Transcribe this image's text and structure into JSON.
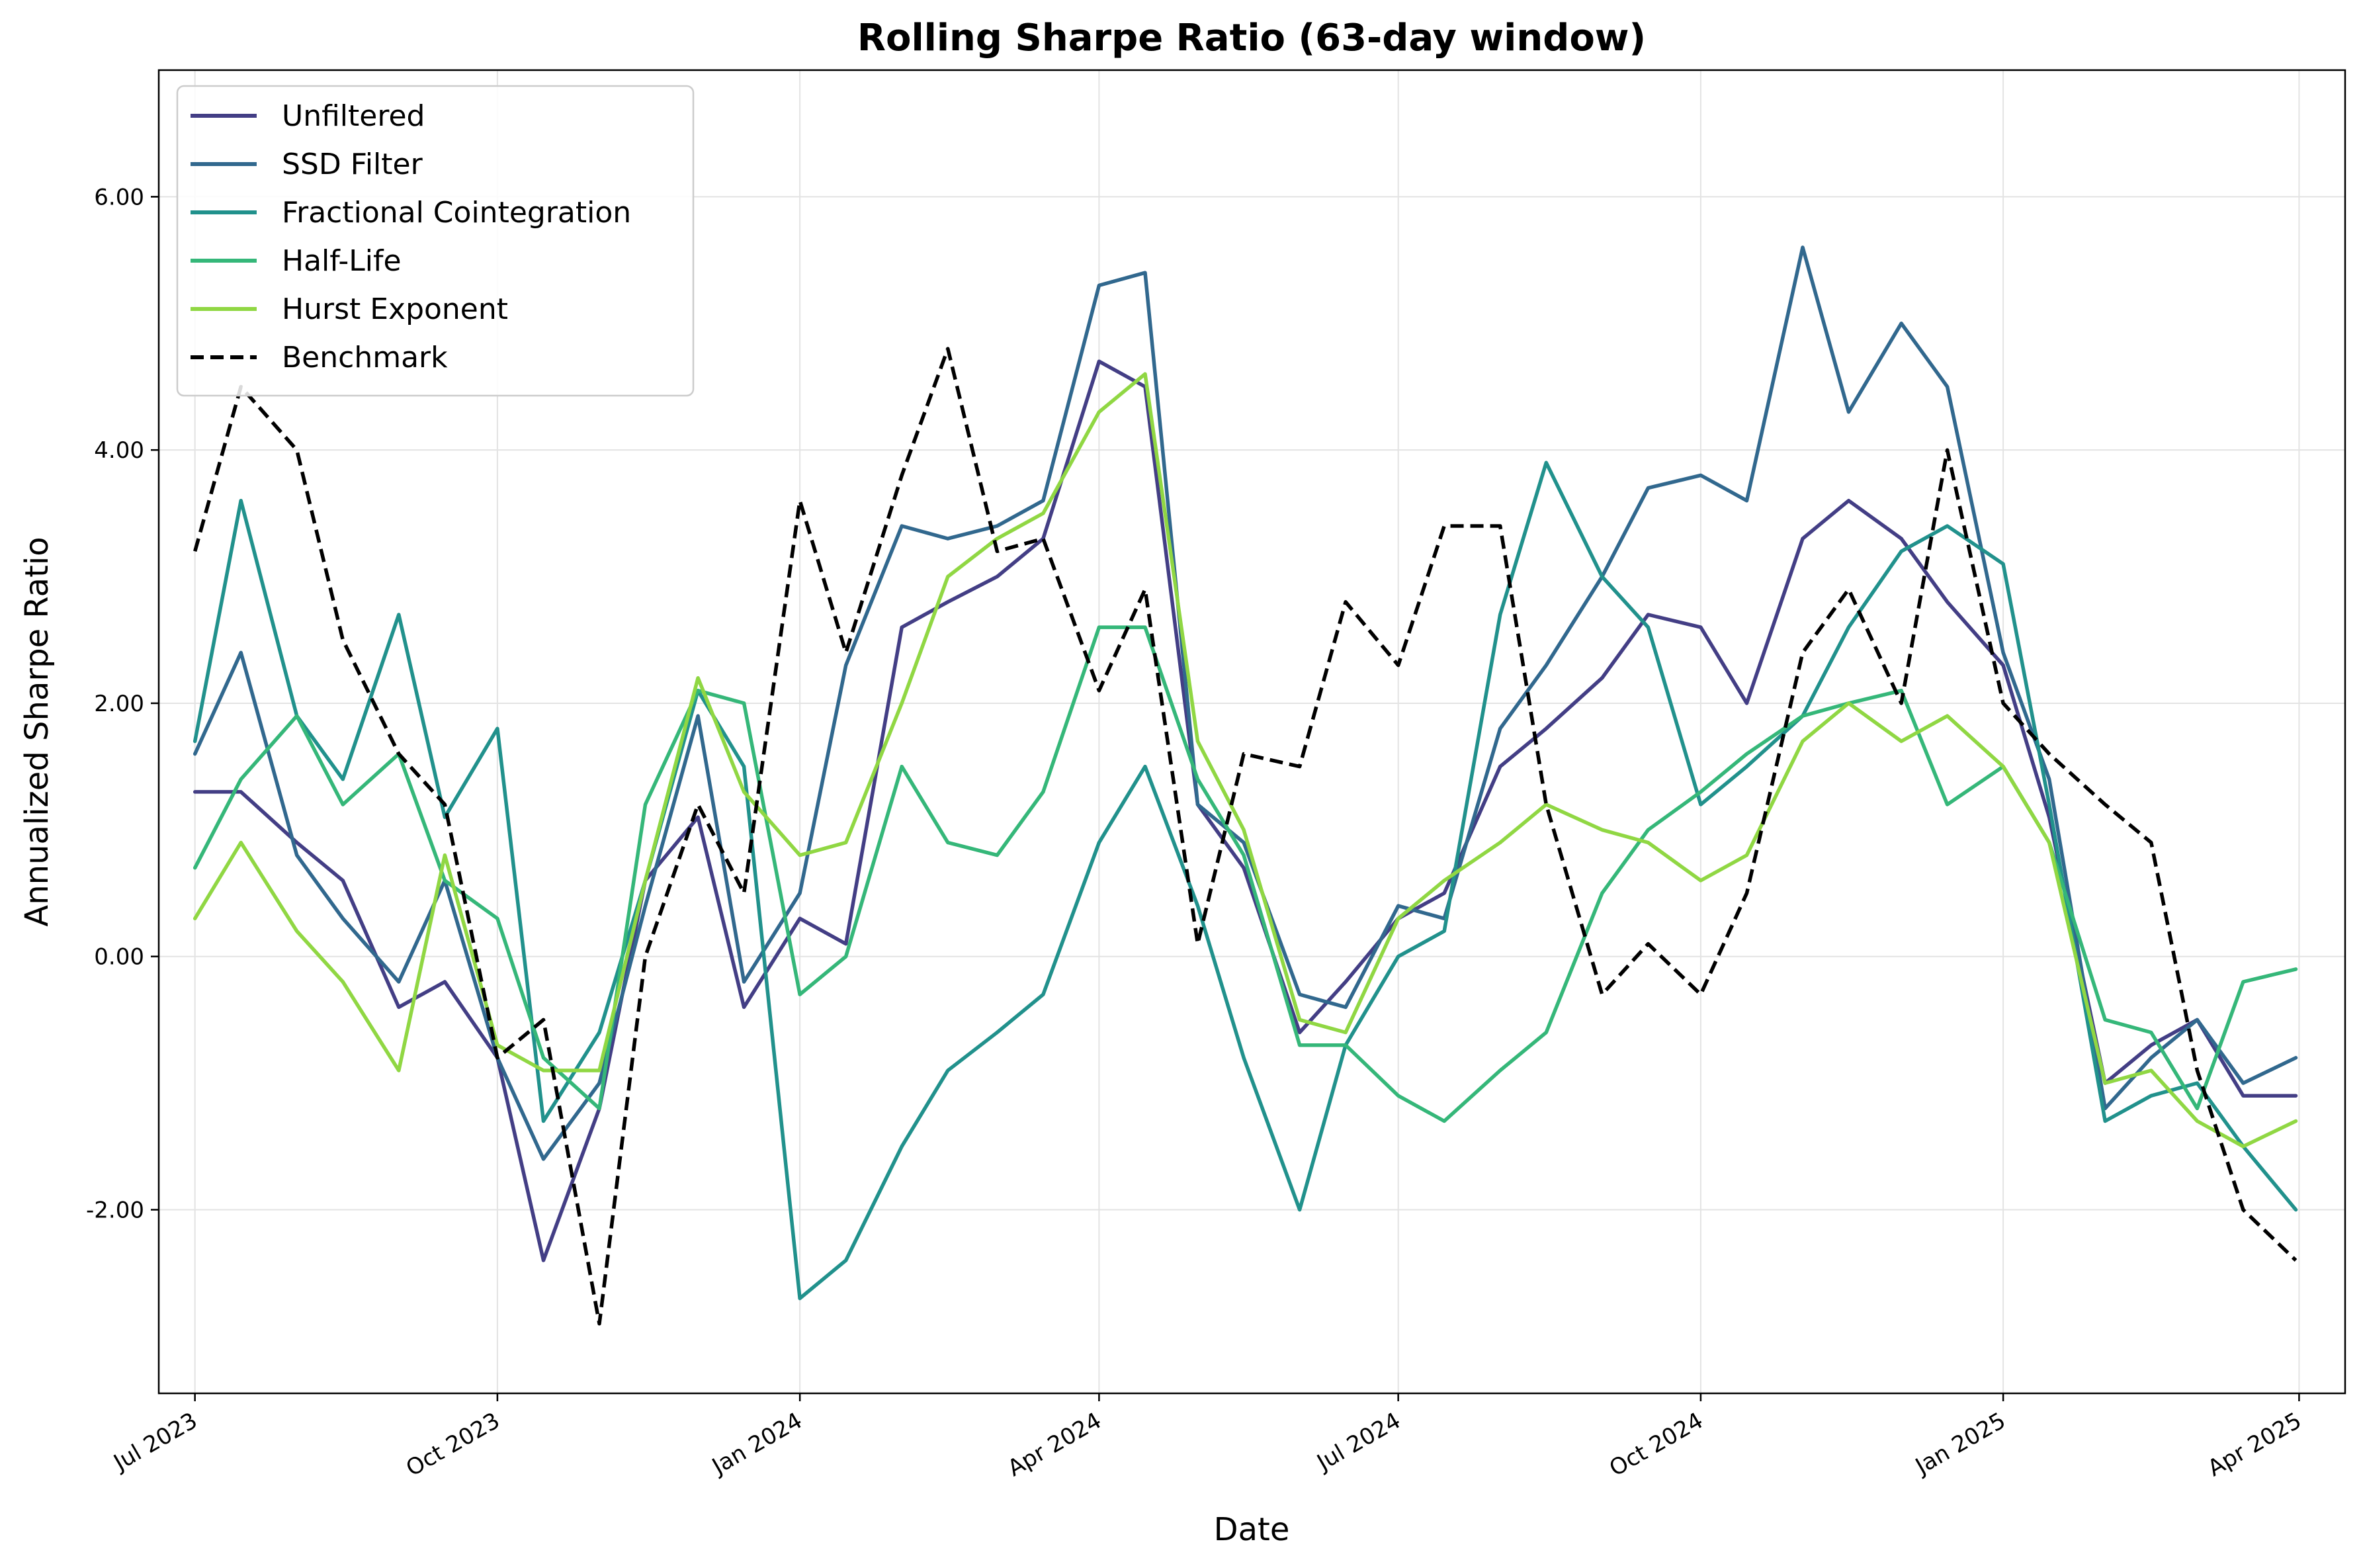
{
  "chart_data": {
    "type": "line",
    "title": "Rolling Sharpe Ratio (63-day window)",
    "xlabel": "Date",
    "ylabel": "Annualized Sharpe Ratio",
    "xlim": [
      "2023-06-20",
      "2025-04-15"
    ],
    "ylim": [
      -3.45,
      7.0
    ],
    "x_ticks": [
      {
        "date": "2023-07-01",
        "label": "Jul 2023"
      },
      {
        "date": "2023-10-01",
        "label": "Oct 2023"
      },
      {
        "date": "2024-01-01",
        "label": "Jan 2024"
      },
      {
        "date": "2024-04-01",
        "label": "Apr 2024"
      },
      {
        "date": "2024-07-01",
        "label": "Jul 2024"
      },
      {
        "date": "2024-10-01",
        "label": "Oct 2024"
      },
      {
        "date": "2025-01-01",
        "label": "Jan 2025"
      },
      {
        "date": "2025-04-01",
        "label": "Apr 2025"
      }
    ],
    "y_ticks": [
      {
        "value": -2,
        "label": "-2.00"
      },
      {
        "value": 0,
        "label": "0.00"
      },
      {
        "value": 2,
        "label": "2.00"
      },
      {
        "value": 4,
        "label": "4.00"
      },
      {
        "value": 6,
        "label": "6.00"
      }
    ],
    "grid": true,
    "legend_position": "top-left",
    "series": [
      {
        "name": "Unfiltered",
        "color": "#433e85",
        "dash": "solid",
        "x": [
          "2023-07-01",
          "2023-07-15",
          "2023-08-01",
          "2023-08-15",
          "2023-09-01",
          "2023-09-15",
          "2023-10-01",
          "2023-10-15",
          "2023-11-01",
          "2023-11-15",
          "2023-12-01",
          "2023-12-15",
          "2024-01-01",
          "2024-01-15",
          "2024-02-01",
          "2024-02-15",
          "2024-03-01",
          "2024-03-15",
          "2024-04-01",
          "2024-04-15",
          "2024-05-01",
          "2024-05-15",
          "2024-06-01",
          "2024-06-15",
          "2024-07-01",
          "2024-07-15",
          "2024-08-01",
          "2024-08-15",
          "2024-09-01",
          "2024-09-15",
          "2024-10-01",
          "2024-10-15",
          "2024-11-01",
          "2024-11-15",
          "2024-12-01",
          "2024-12-15",
          "2025-01-01",
          "2025-01-15",
          "2025-02-01",
          "2025-02-15",
          "2025-03-01",
          "2025-03-15",
          "2025-03-31"
        ],
        "y": [
          1.3,
          1.3,
          0.9,
          0.6,
          -0.4,
          -0.2,
          -0.8,
          -2.4,
          -1.2,
          0.6,
          1.1,
          -0.4,
          0.3,
          0.1,
          2.6,
          2.8,
          3.0,
          3.3,
          4.7,
          4.5,
          1.2,
          0.7,
          -0.6,
          -0.2,
          0.3,
          0.5,
          1.5,
          1.8,
          2.2,
          2.7,
          2.6,
          2.0,
          3.3,
          3.6,
          3.3,
          2.8,
          2.3,
          1.1,
          -1.0,
          -0.7,
          -0.5,
          -1.1,
          -1.1
        ]
      },
      {
        "name": "SSD Filter",
        "color": "#31688e",
        "dash": "solid",
        "x": [
          "2023-07-01",
          "2023-07-15",
          "2023-08-01",
          "2023-08-15",
          "2023-09-01",
          "2023-09-15",
          "2023-10-01",
          "2023-10-15",
          "2023-11-01",
          "2023-11-15",
          "2023-12-01",
          "2023-12-15",
          "2024-01-01",
          "2024-01-15",
          "2024-02-01",
          "2024-02-15",
          "2024-03-01",
          "2024-03-15",
          "2024-04-01",
          "2024-04-15",
          "2024-05-01",
          "2024-05-15",
          "2024-06-01",
          "2024-06-15",
          "2024-07-01",
          "2024-07-15",
          "2024-08-01",
          "2024-08-15",
          "2024-09-01",
          "2024-09-15",
          "2024-10-01",
          "2024-10-15",
          "2024-11-01",
          "2024-11-15",
          "2024-12-01",
          "2024-12-15",
          "2025-01-01",
          "2025-01-15",
          "2025-02-01",
          "2025-02-15",
          "2025-03-01",
          "2025-03-15",
          "2025-03-31"
        ],
        "y": [
          1.6,
          2.4,
          0.8,
          0.3,
          -0.2,
          0.6,
          -0.8,
          -1.6,
          -1.0,
          0.4,
          1.9,
          -0.2,
          0.5,
          2.3,
          3.4,
          3.3,
          3.4,
          3.6,
          5.3,
          5.4,
          1.2,
          0.9,
          -0.3,
          -0.4,
          0.4,
          0.3,
          1.8,
          2.3,
          3.0,
          3.7,
          3.8,
          3.6,
          5.6,
          4.3,
          5.0,
          4.5,
          2.4,
          1.4,
          -1.2,
          -0.8,
          -0.5,
          -1.0,
          -0.8
        ]
      },
      {
        "name": "Fractional Cointegration",
        "color": "#21918c",
        "dash": "solid",
        "x": [
          "2023-07-01",
          "2023-07-15",
          "2023-08-01",
          "2023-08-15",
          "2023-09-01",
          "2023-09-15",
          "2023-10-01",
          "2023-10-15",
          "2023-11-01",
          "2023-11-15",
          "2023-12-01",
          "2023-12-15",
          "2024-01-01",
          "2024-01-15",
          "2024-02-01",
          "2024-02-15",
          "2024-03-01",
          "2024-03-15",
          "2024-04-01",
          "2024-04-15",
          "2024-05-01",
          "2024-05-15",
          "2024-06-01",
          "2024-06-15",
          "2024-07-01",
          "2024-07-15",
          "2024-08-01",
          "2024-08-15",
          "2024-09-01",
          "2024-09-15",
          "2024-10-01",
          "2024-10-15",
          "2024-11-01",
          "2024-11-15",
          "2024-12-01",
          "2024-12-15",
          "2025-01-01",
          "2025-01-15",
          "2025-02-01",
          "2025-02-15",
          "2025-03-01",
          "2025-03-15",
          "2025-03-31"
        ],
        "y": [
          1.7,
          3.6,
          1.9,
          1.4,
          2.7,
          1.1,
          1.8,
          -1.3,
          -0.6,
          0.6,
          2.1,
          1.5,
          -2.7,
          -2.4,
          -1.5,
          -0.9,
          -0.6,
          -0.3,
          0.9,
          1.5,
          0.4,
          -0.8,
          -2.0,
          -0.7,
          0.0,
          0.2,
          2.7,
          3.9,
          3.0,
          2.6,
          1.2,
          1.5,
          1.9,
          2.6,
          3.2,
          3.4,
          3.1,
          1.2,
          -1.3,
          -1.1,
          -1.0,
          -1.5,
          -2.0
        ]
      },
      {
        "name": "Half-Life",
        "color": "#35b779",
        "dash": "solid",
        "x": [
          "2023-07-01",
          "2023-07-15",
          "2023-08-01",
          "2023-08-15",
          "2023-09-01",
          "2023-09-15",
          "2023-10-01",
          "2023-10-15",
          "2023-11-01",
          "2023-11-15",
          "2023-12-01",
          "2023-12-15",
          "2024-01-01",
          "2024-01-15",
          "2024-02-01",
          "2024-02-15",
          "2024-03-01",
          "2024-03-15",
          "2024-04-01",
          "2024-04-15",
          "2024-05-01",
          "2024-05-15",
          "2024-06-01",
          "2024-06-15",
          "2024-07-01",
          "2024-07-15",
          "2024-08-01",
          "2024-08-15",
          "2024-09-01",
          "2024-09-15",
          "2024-10-01",
          "2024-10-15",
          "2024-11-01",
          "2024-11-15",
          "2024-12-01",
          "2024-12-15",
          "2025-01-01",
          "2025-01-15",
          "2025-02-01",
          "2025-02-15",
          "2025-03-01",
          "2025-03-15",
          "2025-03-31"
        ],
        "y": [
          0.7,
          1.4,
          1.9,
          1.2,
          1.6,
          0.6,
          0.3,
          -0.8,
          -1.2,
          1.2,
          2.1,
          2.0,
          -0.3,
          0.0,
          1.5,
          0.9,
          0.8,
          1.3,
          2.6,
          2.6,
          1.4,
          0.8,
          -0.7,
          -0.7,
          -1.1,
          -1.3,
          -0.9,
          -0.6,
          0.5,
          1.0,
          1.3,
          1.6,
          1.9,
          2.0,
          2.1,
          1.2,
          1.5,
          0.9,
          -0.5,
          -0.6,
          -1.2,
          -0.2,
          -0.1
        ]
      },
      {
        "name": "Hurst Exponent",
        "color": "#90d743",
        "dash": "solid",
        "x": [
          "2023-07-01",
          "2023-07-15",
          "2023-08-01",
          "2023-08-15",
          "2023-09-01",
          "2023-09-15",
          "2023-10-01",
          "2023-10-15",
          "2023-11-01",
          "2023-11-15",
          "2023-12-01",
          "2023-12-15",
          "2024-01-01",
          "2024-01-15",
          "2024-02-01",
          "2024-02-15",
          "2024-03-01",
          "2024-03-15",
          "2024-04-01",
          "2024-04-15",
          "2024-05-01",
          "2024-05-15",
          "2024-06-01",
          "2024-06-15",
          "2024-07-01",
          "2024-07-15",
          "2024-08-01",
          "2024-08-15",
          "2024-09-01",
          "2024-09-15",
          "2024-10-01",
          "2024-10-15",
          "2024-11-01",
          "2024-11-15",
          "2024-12-01",
          "2024-12-15",
          "2025-01-01",
          "2025-01-15",
          "2025-02-01",
          "2025-02-15",
          "2025-03-01",
          "2025-03-15",
          "2025-03-31"
        ],
        "y": [
          0.3,
          0.9,
          0.2,
          -0.2,
          -0.9,
          0.8,
          -0.7,
          -0.9,
          -0.9,
          0.6,
          2.2,
          1.3,
          0.8,
          0.9,
          2.0,
          3.0,
          3.3,
          3.5,
          4.3,
          4.6,
          1.7,
          1.0,
          -0.5,
          -0.6,
          0.3,
          0.6,
          0.9,
          1.2,
          1.0,
          0.9,
          0.6,
          0.8,
          1.7,
          2.0,
          1.7,
          1.9,
          1.5,
          0.9,
          -1.0,
          -0.9,
          -1.3,
          -1.5,
          -1.3
        ]
      },
      {
        "name": "Benchmark",
        "color": "#000000",
        "dash": "dashed",
        "x": [
          "2023-07-01",
          "2023-07-15",
          "2023-08-01",
          "2023-08-15",
          "2023-09-01",
          "2023-09-15",
          "2023-10-01",
          "2023-10-15",
          "2023-11-01",
          "2023-11-15",
          "2023-12-01",
          "2023-12-15",
          "2024-01-01",
          "2024-01-15",
          "2024-02-01",
          "2024-02-15",
          "2024-03-01",
          "2024-03-15",
          "2024-04-01",
          "2024-04-15",
          "2024-05-01",
          "2024-05-15",
          "2024-06-01",
          "2024-06-15",
          "2024-07-01",
          "2024-07-15",
          "2024-08-01",
          "2024-08-15",
          "2024-09-01",
          "2024-09-15",
          "2024-10-01",
          "2024-10-15",
          "2024-11-01",
          "2024-11-15",
          "2024-12-01",
          "2024-12-15",
          "2025-01-01",
          "2025-01-15",
          "2025-02-01",
          "2025-02-15",
          "2025-03-01",
          "2025-03-15",
          "2025-03-31"
        ],
        "y": [
          3.2,
          4.5,
          4.0,
          2.5,
          1.6,
          1.2,
          -0.8,
          -0.5,
          -2.9,
          0.0,
          1.2,
          0.5,
          3.6,
          2.4,
          3.8,
          4.8,
          3.2,
          3.3,
          2.1,
          2.9,
          0.1,
          1.6,
          1.5,
          2.8,
          2.3,
          3.4,
          3.4,
          1.2,
          -0.3,
          0.1,
          -0.3,
          0.5,
          2.4,
          2.9,
          2.0,
          4.0,
          2.0,
          1.6,
          1.2,
          0.9,
          -0.9,
          -2.0,
          -2.4
        ]
      }
    ]
  }
}
